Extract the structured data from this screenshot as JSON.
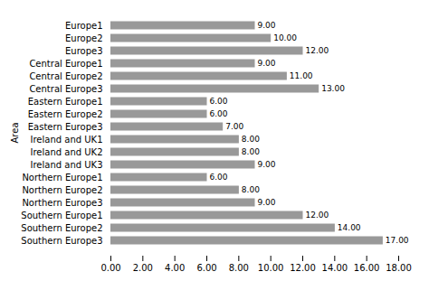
{
  "chart_data": {
    "type": "bar",
    "orientation": "horizontal",
    "categories": [
      "Europe1",
      "Europe2",
      "Europe3",
      "Central Europe1",
      "Central Europe2",
      "Central Europe3",
      "Eastern Europe1",
      "Eastern Europe2",
      "Eastern Europe3",
      "Ireland and UK1",
      "Ireland and UK2",
      "Ireland and UK3",
      "Northern Europe1",
      "Northern Europe2",
      "Northern Europe3",
      "Southern Europe1",
      "Southern Europe2",
      "Southern Europe3"
    ],
    "values": [
      9,
      10,
      12,
      9,
      11,
      13,
      6,
      6,
      7,
      8,
      8,
      9,
      6,
      8,
      9,
      12,
      14,
      17
    ],
    "value_labels": [
      "9.00",
      "10.00",
      "12.00",
      "9.00",
      "11.00",
      "13.00",
      "6.00",
      "6.00",
      "7.00",
      "8.00",
      "8.00",
      "9.00",
      "6.00",
      "8.00",
      "9.00",
      "12.00",
      "14.00",
      "17.00"
    ],
    "data_labels": true,
    "color": "#999999",
    "ylabel": "Area",
    "xlim": [
      0,
      18
    ],
    "xticks": [
      {
        "value": 0,
        "label": "0.00"
      },
      {
        "value": 2,
        "label": "2.00"
      },
      {
        "value": 4,
        "label": "4.00"
      },
      {
        "value": 6,
        "label": "6.00"
      },
      {
        "value": 8,
        "label": "8.00"
      },
      {
        "value": 10,
        "label": "10.00"
      },
      {
        "value": 12,
        "label": "12.00"
      },
      {
        "value": 14,
        "label": "14.00"
      },
      {
        "value": 16,
        "label": "16.00"
      },
      {
        "value": 18,
        "label": "18.00"
      }
    ],
    "grid": false
  }
}
